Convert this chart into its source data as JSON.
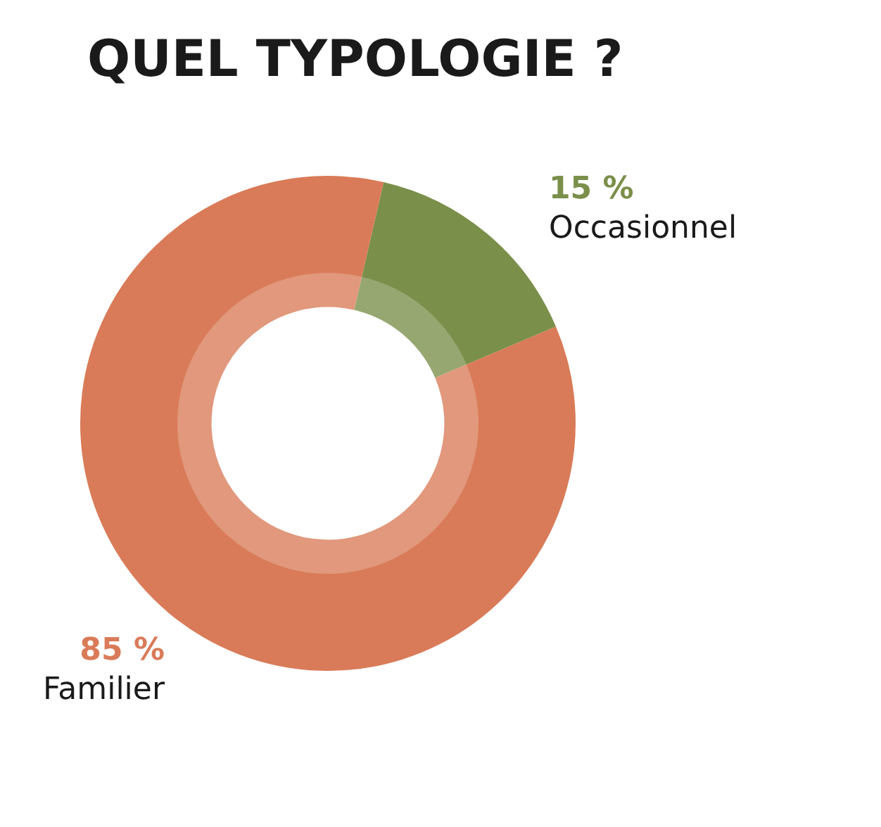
{
  "chart_data": {
    "type": "donut",
    "title": "QUEL TYPOLOGIE ?",
    "categories": [
      "Occasionnel",
      "Familier"
    ],
    "values": [
      15,
      85
    ],
    "colors": [
      "#7a8f4a",
      "#d97b58"
    ],
    "value_labels": [
      "15 %",
      "85 %"
    ],
    "legend": false
  }
}
